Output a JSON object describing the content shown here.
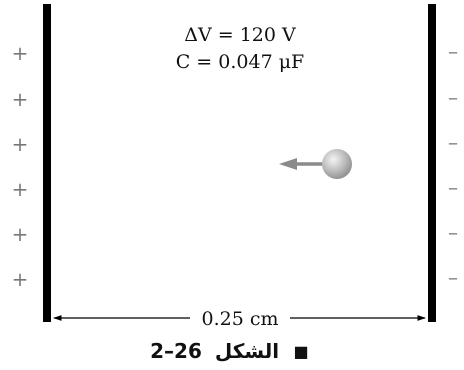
{
  "figure": {
    "voltage_label": "ΔV = 120 V",
    "capacitance_label": "C = 0.047 μF",
    "distance_label": "0.25 cm",
    "left_plate_signs": [
      "+",
      "+",
      "+",
      "+",
      "+",
      "+"
    ],
    "right_plate_signs": [
      "–",
      "–",
      "–",
      "–",
      "–",
      "–"
    ],
    "caption_number": "2–26",
    "caption_word": "الشكل",
    "caption_bullet": "■"
  },
  "colors": {
    "plate": "#000000",
    "sign": "#777777",
    "arrow": "#8a8a8a",
    "charge_sphere": "#bdbdbd",
    "text": "#111111"
  }
}
